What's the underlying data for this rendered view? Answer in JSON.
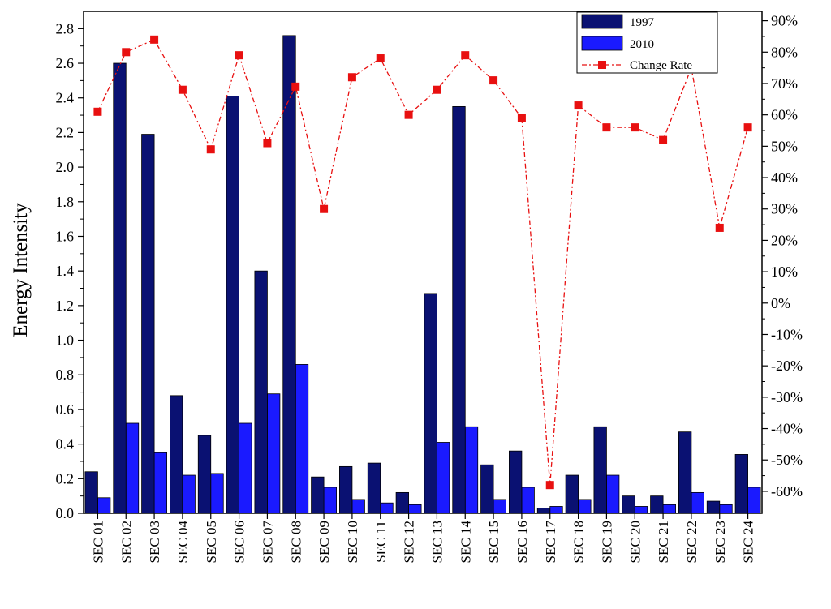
{
  "chart_data": {
    "type": "bar",
    "title": "",
    "xlabel": "",
    "ylabel": "Energy Intensity",
    "y2label": "",
    "ylim": [
      0,
      2.9
    ],
    "y2lim": [
      -0.67,
      0.93
    ],
    "grid": false,
    "legend": "top-right",
    "categories": [
      "SEC 01",
      "SEC 02",
      "SEC 03",
      "SEC 04",
      "SEC 05",
      "SEC 06",
      "SEC 07",
      "SEC 08",
      "SEC 09",
      "SEC 10",
      "SEC 11",
      "SEC 12",
      "SEC 13",
      "SEC 14",
      "SEC 15",
      "SEC 16",
      "SEC 17",
      "SEC 18",
      "SEC 19",
      "SEC 20",
      "SEC 21",
      "SEC 22",
      "SEC 23",
      "SEC 24"
    ],
    "yticks": [
      0.0,
      0.2,
      0.4,
      0.6,
      0.8,
      1.0,
      1.2,
      1.4,
      1.6,
      1.8,
      2.0,
      2.2,
      2.4,
      2.6,
      2.8
    ],
    "yticklabels": [
      "0.0",
      "0.2",
      "0.4",
      "0.6",
      "0.8",
      "1.0",
      "1.2",
      "1.4",
      "1.6",
      "1.8",
      "2.0",
      "2.2",
      "2.4",
      "2.6",
      "2.8"
    ],
    "y2ticks": [
      -0.6,
      -0.5,
      -0.4,
      -0.3,
      -0.2,
      -0.1,
      0.0,
      0.1,
      0.2,
      0.3,
      0.4,
      0.5,
      0.6,
      0.7,
      0.8,
      0.9
    ],
    "y2ticklabels": [
      "-60%",
      "-50%",
      "-40%",
      "-30%",
      "-20%",
      "-10%",
      "0%",
      "10%",
      "20%",
      "30%",
      "40%",
      "50%",
      "60%",
      "70%",
      "80%",
      "90%"
    ],
    "series": [
      {
        "name": "1997",
        "type": "bar",
        "axis": "left",
        "color": "#0a1172",
        "values": [
          0.24,
          2.6,
          2.19,
          0.68,
          0.45,
          2.41,
          1.4,
          2.76,
          0.21,
          0.27,
          0.29,
          0.12,
          1.27,
          2.35,
          0.28,
          0.36,
          0.03,
          0.22,
          0.5,
          0.1,
          0.1,
          0.47,
          0.07,
          0.34
        ]
      },
      {
        "name": "2010",
        "type": "bar",
        "axis": "left",
        "color": "#1a1aff",
        "values": [
          0.09,
          0.52,
          0.35,
          0.22,
          0.23,
          0.52,
          0.69,
          0.86,
          0.15,
          0.08,
          0.06,
          0.05,
          0.41,
          0.5,
          0.08,
          0.15,
          0.04,
          0.08,
          0.22,
          0.04,
          0.05,
          0.12,
          0.05,
          0.15
        ]
      },
      {
        "name": "Change Rate",
        "type": "line",
        "axis": "right",
        "color": "#e81010",
        "values": [
          0.61,
          0.8,
          0.84,
          0.68,
          0.49,
          0.79,
          0.51,
          0.69,
          0.3,
          0.72,
          0.78,
          0.6,
          0.68,
          0.79,
          0.71,
          0.59,
          -0.58,
          0.63,
          0.56,
          0.56,
          0.52,
          0.75,
          0.24,
          0.56
        ]
      }
    ]
  }
}
